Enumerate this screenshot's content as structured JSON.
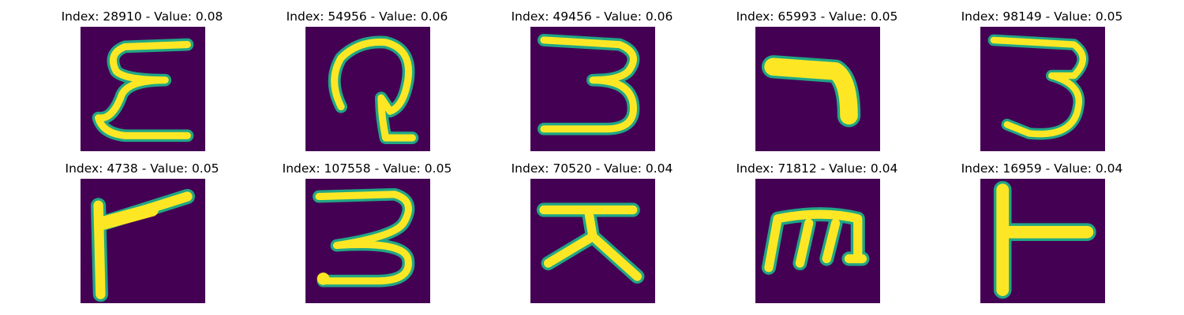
{
  "colors": {
    "background": "#440154",
    "edge": "#21a685",
    "ink": "#fde725"
  },
  "panels": [
    {
      "title": "Index: 28910 - Value: 0.08",
      "shape": "epsilon-glyph"
    },
    {
      "title": "Index: 54956 - Value: 0.06",
      "shape": "loop-glyph"
    },
    {
      "title": "Index: 49456 - Value: 0.06",
      "shape": "three-glyph"
    },
    {
      "title": "Index: 65993 - Value: 0.05",
      "shape": "hook-glyph"
    },
    {
      "title": "Index: 98149 - Value: 0.05",
      "shape": "three-glyph"
    },
    {
      "title": "Index: 4738 - Value: 0.05",
      "shape": "flag-glyph"
    },
    {
      "title": "Index: 107558 - Value: 0.05",
      "shape": "three-glyph"
    },
    {
      "title": "Index: 70520 - Value: 0.04",
      "shape": "tent-glyph"
    },
    {
      "title": "Index: 71812 - Value: 0.04",
      "shape": "m-glyph"
    },
    {
      "title": "Index: 16959 - Value: 0.04",
      "shape": "tee-glyph"
    }
  ]
}
